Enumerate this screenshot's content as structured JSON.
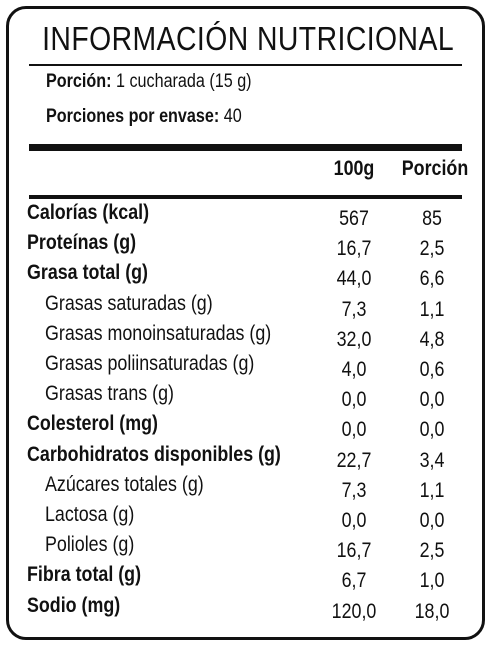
{
  "title": "INFORMACIÓN NUTRICIONAL",
  "serving": {
    "portion_label": "Porción:",
    "portion_value": "1 cucharada (15 g)",
    "per_pack_label": "Porciones por envase:",
    "per_pack_value": "40"
  },
  "columns": {
    "per100": "100g",
    "portion": "Porción"
  },
  "rows": [
    {
      "name": "Calorías (kcal)",
      "v100": "567",
      "vpor": "85",
      "style": "bold"
    },
    {
      "name": "Proteínas (g)",
      "v100": "16,7",
      "vpor": "2,5",
      "style": "bold"
    },
    {
      "name": "Grasa total (g)",
      "v100": "44,0",
      "vpor": "6,6",
      "style": "bold"
    },
    {
      "name": "Grasas saturadas (g)",
      "v100": "7,3",
      "vpor": "1,1",
      "style": "sub"
    },
    {
      "name": "Grasas monoinsaturadas (g)",
      "v100": "32,0",
      "vpor": "4,8",
      "style": "sub"
    },
    {
      "name": "Grasas poliinsaturadas (g)",
      "v100": "4,0",
      "vpor": "0,6",
      "style": "sub"
    },
    {
      "name": "Grasas trans (g)",
      "v100": "0,0",
      "vpor": "0,0",
      "style": "sub"
    },
    {
      "name": "Colesterol (mg)",
      "v100": "0,0",
      "vpor": "0,0",
      "style": "bold"
    },
    {
      "name": "Carbohidratos disponibles (g)",
      "v100": "22,7",
      "vpor": "3,4",
      "style": "bold"
    },
    {
      "name": "Azúcares totales (g)",
      "v100": "7,3",
      "vpor": "1,1",
      "style": "sub"
    },
    {
      "name": "Lactosa (g)",
      "v100": "0,0",
      "vpor": "0,0",
      "style": "sub"
    },
    {
      "name": "Polioles (g)",
      "v100": "16,7",
      "vpor": "2,5",
      "style": "sub"
    },
    {
      "name": "Fibra total (g)",
      "v100": "6,7",
      "vpor": "1,0",
      "style": "bold"
    },
    {
      "name": "Sodio (mg)",
      "v100": "120,0",
      "vpor": "18,0",
      "style": "bold"
    }
  ]
}
